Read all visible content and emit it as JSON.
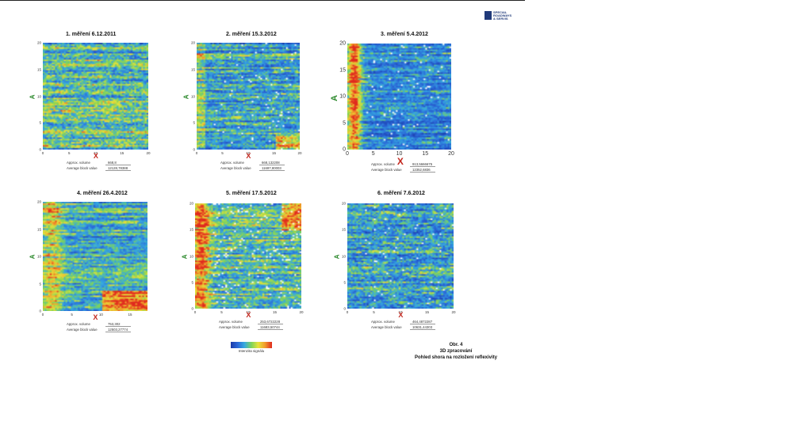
{
  "logo": {
    "text": "SPECIAL ROADWAYS & SERVIS"
  },
  "panels": [
    {
      "title": "1. měření 6.12.2011",
      "y_ticks": [
        "20",
        "15",
        "10",
        "5",
        "0"
      ],
      "x_ticks": [
        "0",
        "5",
        "10",
        "15",
        "20"
      ],
      "xlabel": "X",
      "ylabel": "A",
      "volume_label": "Approx. volume",
      "volume_value": "668,8",
      "avg_label": "Average block value",
      "avg_value": "12128,78388"
    },
    {
      "title": "2. měření 15.3.2012",
      "y_ticks": [
        "20",
        "15",
        "10",
        "5",
        "0"
      ],
      "x_ticks": [
        "0",
        "5",
        "10",
        "15",
        "20"
      ],
      "xlabel": "X",
      "ylabel": "A",
      "volume_label": "Approx. volume",
      "volume_value": "668,132208",
      "avg_label": "Average block value",
      "avg_value": "11697,80003"
    },
    {
      "title": "3. měření 5.4.2012",
      "y_ticks": [
        "20",
        "15",
        "10",
        "5",
        "0"
      ],
      "x_ticks": [
        "0",
        "5",
        "10",
        "15",
        "20"
      ],
      "xlabel": "X",
      "ylabel": "A",
      "volume_label": "Approx. volume",
      "volume_value": "913,5666675",
      "avg_label": "Average block value",
      "avg_value": "12352,6836"
    },
    {
      "title": "4. měření 26.4.2012",
      "y_ticks": [
        "20",
        "15",
        "10",
        "5",
        "0"
      ],
      "x_ticks": [
        "0",
        "5",
        "10",
        "15"
      ],
      "xlabel": "X",
      "ylabel": "A",
      "volume_label": "Approx. volume",
      "volume_value": "753,302",
      "avg_label": "Average block value",
      "avg_value": "12503,27774"
    },
    {
      "title": "5. měření 17.5.2012",
      "y_ticks": [
        "20",
        "15",
        "10",
        "5",
        "0"
      ],
      "x_ticks": [
        "0",
        "5",
        "10",
        "15",
        "20"
      ],
      "xlabel": "X",
      "ylabel": "A",
      "volume_label": "Approx. volume",
      "volume_value": "253,6722228",
      "avg_label": "Average block value",
      "avg_value": "11683,50744"
    },
    {
      "title": "6. měření 7.6.2012",
      "y_ticks": [
        "20",
        "15",
        "10",
        "5",
        "0"
      ],
      "x_ticks": [
        "0",
        "5",
        "10",
        "15",
        "20"
      ],
      "xlabel": "X",
      "ylabel": "A",
      "volume_label": "Approx. volume",
      "volume_value": "464,4872287",
      "avg_label": "Average block value",
      "avg_value": "10631,44303"
    }
  ],
  "legend": {
    "label": "Intenzita signálu"
  },
  "caption": {
    "line1": "Obr. 4",
    "line2": "3D zpracování",
    "line3": "Pohled shora na rozložení reflexivity"
  },
  "colors": {
    "low": "#1b3aa8",
    "mid": "#7ed35a",
    "high": "#e02a1e"
  }
}
